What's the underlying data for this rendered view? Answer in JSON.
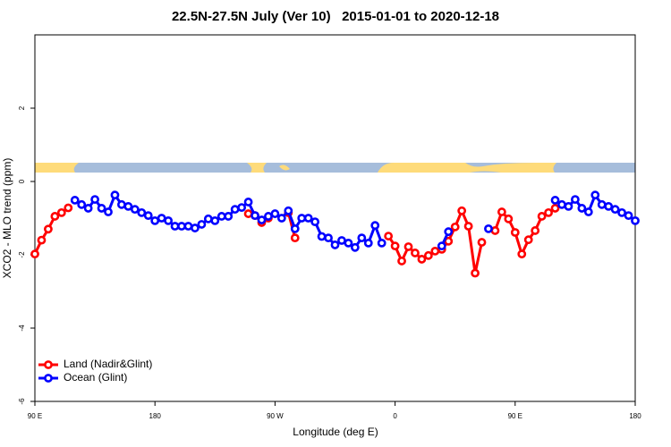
{
  "chart_data": {
    "type": "line",
    "title": "22.5N-27.5N July (Ver 10)   2015-01-01 to 2020-12-18",
    "x_label": "Longitude (deg E)",
    "y_label": "XCO2 - MLO trend (ppm)",
    "xlim": [
      90,
      540
    ],
    "xticks": [
      {
        "value": 90,
        "label": "90 E"
      },
      180,
      {
        "value": 270,
        "label": "90 W"
      },
      {
        "value": 360,
        "label": "0"
      },
      {
        "value": 450,
        "label": "90 E"
      },
      180
    ],
    "ylim": [
      -6,
      4
    ],
    "yticks": [
      -6,
      -4,
      -2,
      0,
      2
    ],
    "legend": "bottom-left",
    "series": [
      {
        "name": "Land (Nadir&Glint)",
        "color": "#ff0000",
        "x": [
          90,
          95,
          100,
          105,
          110,
          115,
          null,
          250,
          255,
          260,
          265,
          null,
          280,
          285,
          null,
          355,
          360,
          365,
          370,
          375,
          380,
          385,
          390,
          395,
          400,
          405,
          410,
          415,
          420,
          425,
          null,
          435,
          440,
          445,
          450,
          455,
          460,
          465,
          470,
          475,
          480
        ],
        "values": [
          -1.98,
          -1.6,
          -1.3,
          -0.95,
          -0.85,
          -0.72,
          null,
          -0.88,
          -0.93,
          -1.12,
          -1.0,
          null,
          -0.85,
          -1.54,
          null,
          -1.49,
          -1.76,
          -2.17,
          -1.78,
          -1.95,
          -2.12,
          -2.02,
          -1.9,
          -1.85,
          -1.63,
          -1.24,
          -0.8,
          -1.22,
          -2.5,
          -1.66,
          null,
          -1.34,
          -0.83,
          -1.02,
          -1.39,
          -1.98,
          -1.59,
          -1.34,
          -0.95,
          -0.85,
          -0.73
        ]
      },
      {
        "name": "Ocean (Glint)",
        "color": "#0000ff",
        "x": [
          120,
          125,
          130,
          135,
          140,
          145,
          150,
          155,
          160,
          165,
          170,
          175,
          180,
          185,
          190,
          195,
          200,
          205,
          210,
          215,
          220,
          225,
          230,
          235,
          240,
          245,
          250,
          255,
          260,
          265,
          270,
          275,
          280,
          285,
          290,
          295,
          300,
          305,
          310,
          315,
          320,
          325,
          330,
          335,
          340,
          345,
          350,
          null,
          395,
          400,
          null,
          430,
          null,
          480,
          485,
          490,
          495,
          500,
          505,
          510,
          515,
          520,
          525,
          530,
          535,
          540
        ],
        "values": [
          -0.51,
          -0.63,
          -0.73,
          -0.49,
          -0.73,
          -0.83,
          -0.37,
          -0.63,
          -0.68,
          -0.76,
          -0.85,
          -0.93,
          -1.07,
          -1.0,
          -1.07,
          -1.22,
          -1.22,
          -1.22,
          -1.27,
          -1.17,
          -1.02,
          -1.07,
          -0.95,
          -0.95,
          -0.76,
          -0.71,
          -0.56,
          -0.93,
          -1.05,
          -0.95,
          -0.88,
          -1.0,
          -0.8,
          -1.29,
          -1.0,
          -1.0,
          -1.1,
          -1.5,
          -1.54,
          -1.73,
          -1.61,
          -1.68,
          -1.8,
          -1.54,
          -1.68,
          -1.2,
          -1.68,
          null,
          -1.76,
          -1.37,
          null,
          -1.29,
          null,
          -0.51,
          -0.63,
          -0.68,
          -0.49,
          -0.73,
          -0.83,
          -0.37,
          -0.63,
          -0.68,
          -0.76,
          -0.85,
          -0.93,
          -1.07
        ]
      }
    ]
  }
}
